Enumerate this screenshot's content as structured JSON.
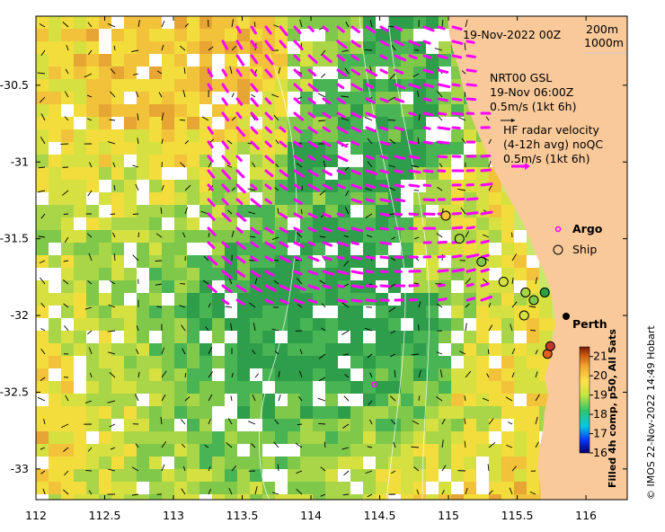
{
  "title": "19-Nov-2022 00Z",
  "depth_contours": [
    "200m",
    "1000m"
  ],
  "gsl": {
    "title": "NRT00 GSL",
    "time": "19-Nov 06:00Z",
    "scale": "0.5m/s (1kt 6h)"
  },
  "radar": {
    "line1": "HF radar velocity",
    "line2": "(4-12h avg) noQC",
    "scale": "0.5m/s (1kt 6h)"
  },
  "legend": {
    "argo": "Argo",
    "ship": "Ship"
  },
  "city": "Perth",
  "colorbar": {
    "label": "Filled 4h comp, p50, All Sats",
    "ticks": [
      "21",
      "20",
      "19",
      "18",
      "17",
      "16"
    ],
    "min": 16,
    "max": 21.5
  },
  "credit": "© IMOS 22-Nov-2022 14:49 Hobart",
  "axes": {
    "x_ticks": [
      "112",
      "112.5",
      "113",
      "113.5",
      "114",
      "114.5",
      "115",
      "115.5",
      "116"
    ],
    "y_ticks": [
      "-30.5",
      "-31",
      "-31.5",
      "-32",
      "-32.5",
      "-33"
    ],
    "xlim": [
      112,
      116.3
    ],
    "ylim": [
      -33.2,
      -30.05
    ]
  },
  "colors": {
    "land": "#f9c99a",
    "radar_arrows": "#ff00ff",
    "perth": "#000000"
  },
  "ship_marks": [
    {
      "lon": 114.98,
      "lat": -31.35
    },
    {
      "lon": 115.08,
      "lat": -31.5
    },
    {
      "lon": 115.24,
      "lat": -31.65
    },
    {
      "lon": 115.4,
      "lat": -31.78
    },
    {
      "lon": 115.56,
      "lat": -31.85
    },
    {
      "lon": 115.62,
      "lat": -31.9
    },
    {
      "lon": 115.55,
      "lat": -32.0
    },
    {
      "lon": 115.7,
      "lat": -31.85
    },
    {
      "lon": 115.72,
      "lat": -32.25
    },
    {
      "lon": 115.74,
      "lat": -32.2
    }
  ],
  "argo_marks": [
    {
      "lon": 114.46,
      "lat": -32.45
    }
  ]
}
